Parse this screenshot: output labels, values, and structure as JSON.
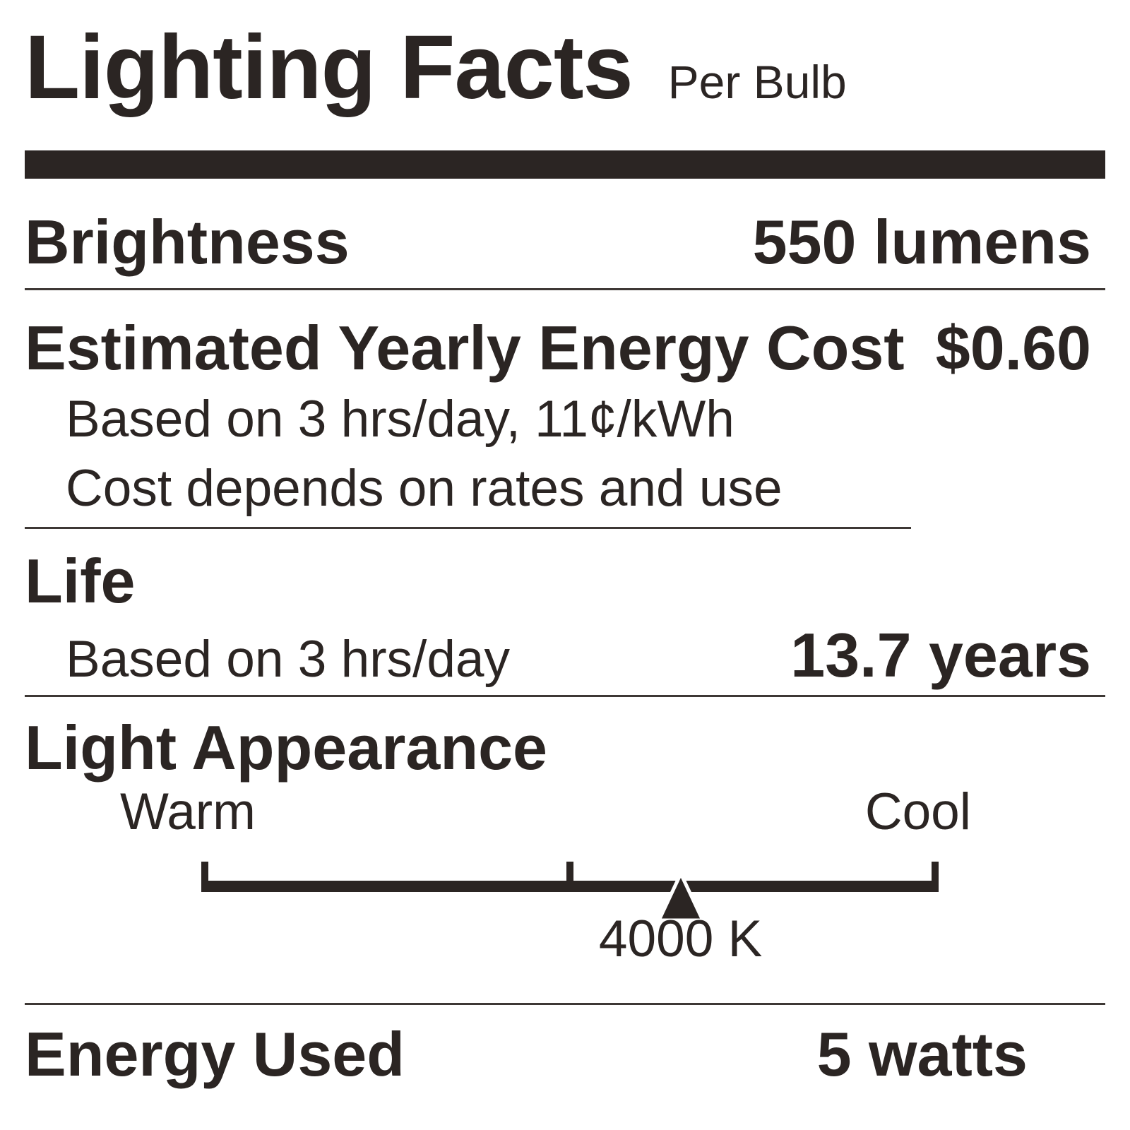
{
  "title": "Lighting Facts",
  "unit_note": "Per Bulb",
  "brightness": {
    "label": "Brightness",
    "value": "550 lumens"
  },
  "energy_cost": {
    "label": "Estimated Yearly Energy Cost",
    "value": "$0.60",
    "basis": "Based on 3 hrs/day, 11¢/kWh",
    "disclaimer": "Cost depends on rates and use"
  },
  "life": {
    "label": "Life",
    "basis": "Based on 3 hrs/day",
    "value": "13.7 years"
  },
  "light_appearance": {
    "label": "Light Appearance",
    "warm_label": "Warm",
    "cool_label": "Cool",
    "kelvin": "4000 K",
    "marker_percent_along_scale": 65
  },
  "energy_used": {
    "label": "Energy Used",
    "value": "5 watts"
  },
  "colors": {
    "ink": "#2B2523",
    "rule": "#3E3835",
    "background": "#FFFFFF"
  }
}
